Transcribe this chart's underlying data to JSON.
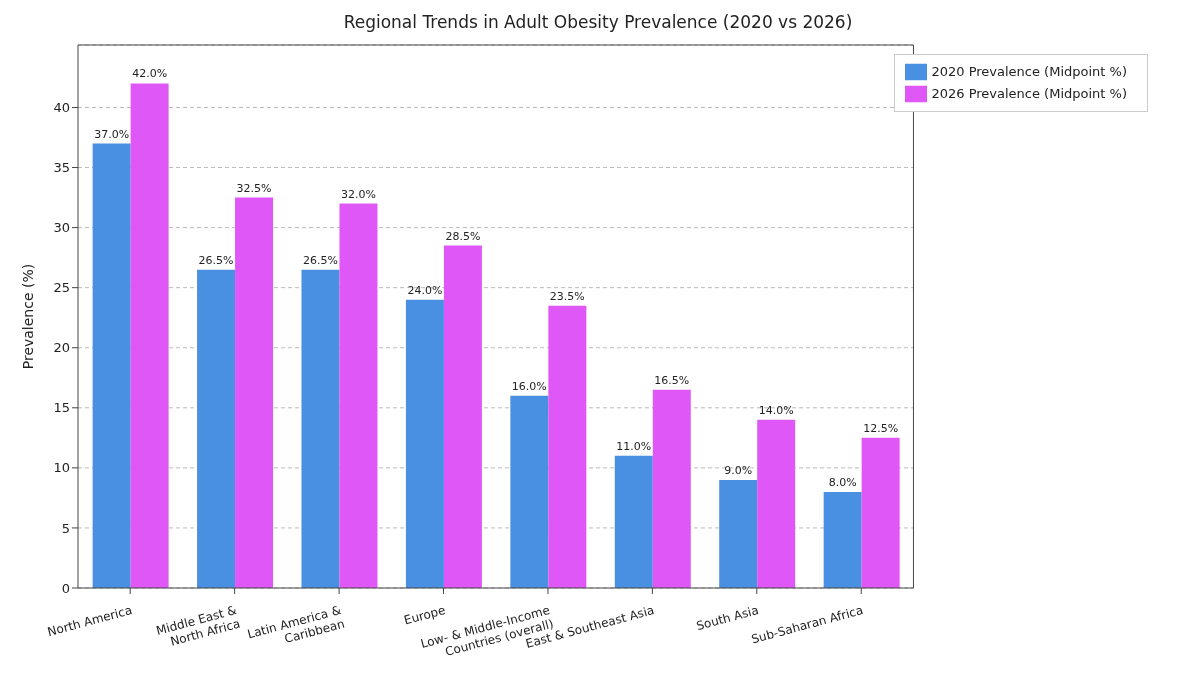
{
  "chart_data": {
    "type": "bar",
    "title": "Regional Trends in Adult Obesity Prevalence (2020 vs 2026)",
    "ylabel": "Prevalence (%)",
    "categories": [
      "North America",
      "Middle East &\nNorth Africa",
      "Latin America &\nCaribbean",
      "Europe",
      "Low- & Middle-Income\nCountries (overall)",
      "East & Southeast Asia",
      "South Asia",
      "Sub-Saharan Africa"
    ],
    "series": [
      {
        "name": "2020 Prevalence (Midpoint %)",
        "color": "#4a90e2",
        "values": [
          37,
          26.5,
          26.5,
          24,
          16,
          11,
          9,
          8
        ],
        "value_labels": [
          "37.0%",
          "26.5%",
          "26.5%",
          "24.0%",
          "16.0%",
          "11.0%",
          "9.0%",
          "8.0%"
        ]
      },
      {
        "name": "2026 Prevalence (Midpoint %)",
        "color": "#e057f7",
        "values": [
          42,
          32.5,
          32,
          28.5,
          23.5,
          16.5,
          14,
          12.5
        ],
        "value_labels": [
          "42.0%",
          "32.5%",
          "32.0%",
          "28.5%",
          "23.5%",
          "16.5%",
          "14.0%",
          "12.5%"
        ]
      }
    ],
    "ylim": [
      0,
      45.2
    ],
    "yticks": [
      0,
      5,
      10,
      15,
      20,
      25,
      30,
      35,
      40
    ],
    "grid": "y",
    "legend": "top right"
  }
}
